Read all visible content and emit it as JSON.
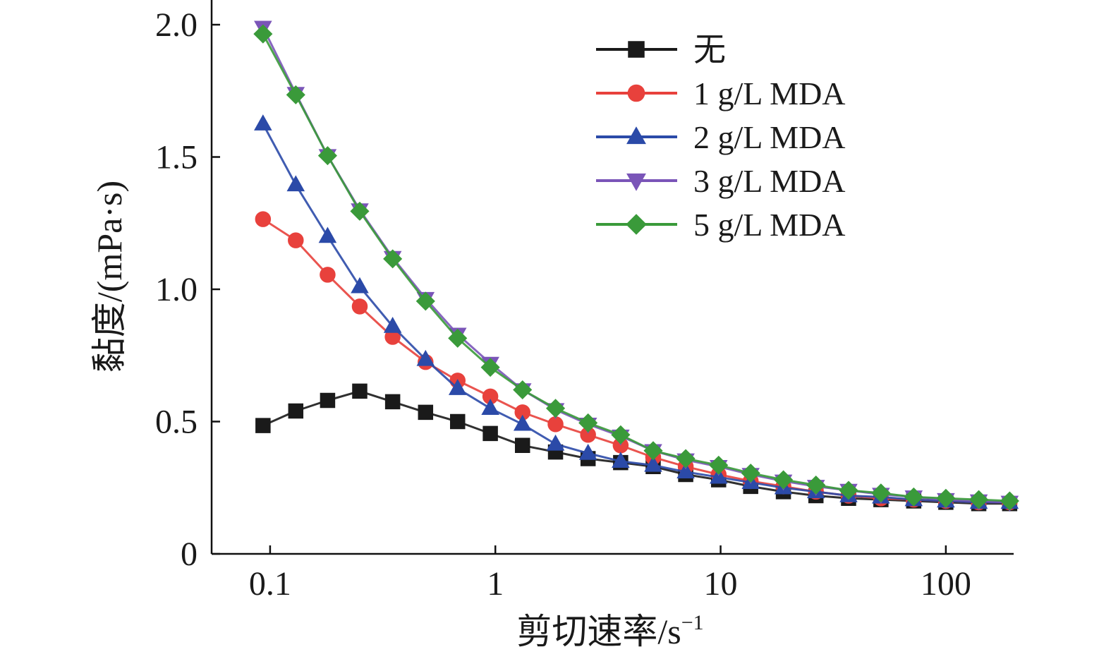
{
  "chart_data": {
    "type": "line",
    "xlabel": "剪切速率/s",
    "xlabel_sup": "−1",
    "ylabel": "黏度/(mPa·s)",
    "x_scale": "log",
    "xlim": [
      0.055,
      200
    ],
    "ylim": [
      0,
      2.0
    ],
    "x_ticks": [
      {
        "value": 0.1,
        "label": "0.1"
      },
      {
        "value": 1,
        "label": "1"
      },
      {
        "value": 10,
        "label": "10"
      },
      {
        "value": 100,
        "label": "100"
      }
    ],
    "y_ticks": [
      {
        "value": 0,
        "label": "0"
      },
      {
        "value": 0.5,
        "label": "0.5"
      },
      {
        "value": 1.0,
        "label": "1.0"
      },
      {
        "value": 1.5,
        "label": "1.5"
      },
      {
        "value": 2.0,
        "label": "2.0"
      }
    ],
    "grid": false,
    "legend_position": "top-right",
    "x": [
      0.093,
      0.13,
      0.18,
      0.25,
      0.35,
      0.49,
      0.68,
      0.95,
      1.32,
      1.85,
      2.58,
      3.6,
      5.02,
      7.0,
      9.8,
      13.6,
      19.0,
      26.5,
      37.0,
      51.5,
      72.0,
      100.0,
      140.0,
      192.0
    ],
    "series": [
      {
        "name": "无",
        "color": "#1a1a1a",
        "marker": "square",
        "values": [
          0.485,
          0.54,
          0.58,
          0.615,
          0.575,
          0.535,
          0.5,
          0.455,
          0.41,
          0.385,
          0.36,
          0.345,
          0.33,
          0.3,
          0.28,
          0.255,
          0.235,
          0.22,
          0.21,
          0.205,
          0.2,
          0.195,
          0.19,
          0.19
        ]
      },
      {
        "name": "1 g/L MDA",
        "color": "#e8413c",
        "marker": "circle",
        "values": [
          1.265,
          1.185,
          1.055,
          0.935,
          0.82,
          0.725,
          0.655,
          0.595,
          0.535,
          0.49,
          0.45,
          0.41,
          0.365,
          0.33,
          0.3,
          0.275,
          0.255,
          0.235,
          0.22,
          0.21,
          0.205,
          0.2,
          0.195,
          0.195
        ]
      },
      {
        "name": "2 g/L MDA",
        "color": "#2b4aa8",
        "marker": "triangle-up",
        "values": [
          1.625,
          1.395,
          1.2,
          1.01,
          0.86,
          0.735,
          0.625,
          0.55,
          0.49,
          0.415,
          0.38,
          0.35,
          0.335,
          0.31,
          0.29,
          0.27,
          0.25,
          0.235,
          0.22,
          0.215,
          0.205,
          0.2,
          0.195,
          0.195
        ]
      },
      {
        "name": "3 g/L MDA",
        "color": "#7a55b8",
        "marker": "triangle-down",
        "values": [
          1.99,
          1.74,
          1.505,
          1.3,
          1.12,
          0.965,
          0.83,
          0.72,
          0.62,
          0.545,
          0.49,
          0.445,
          0.39,
          0.355,
          0.33,
          0.3,
          0.275,
          0.255,
          0.24,
          0.225,
          0.215,
          0.205,
          0.2,
          0.195
        ]
      },
      {
        "name": "5 g/L MDA",
        "color": "#3a9a3a",
        "marker": "diamond",
        "values": [
          1.965,
          1.735,
          1.505,
          1.295,
          1.115,
          0.955,
          0.815,
          0.705,
          0.62,
          0.55,
          0.495,
          0.45,
          0.39,
          0.36,
          0.335,
          0.305,
          0.28,
          0.26,
          0.24,
          0.23,
          0.215,
          0.21,
          0.205,
          0.2
        ]
      }
    ]
  }
}
